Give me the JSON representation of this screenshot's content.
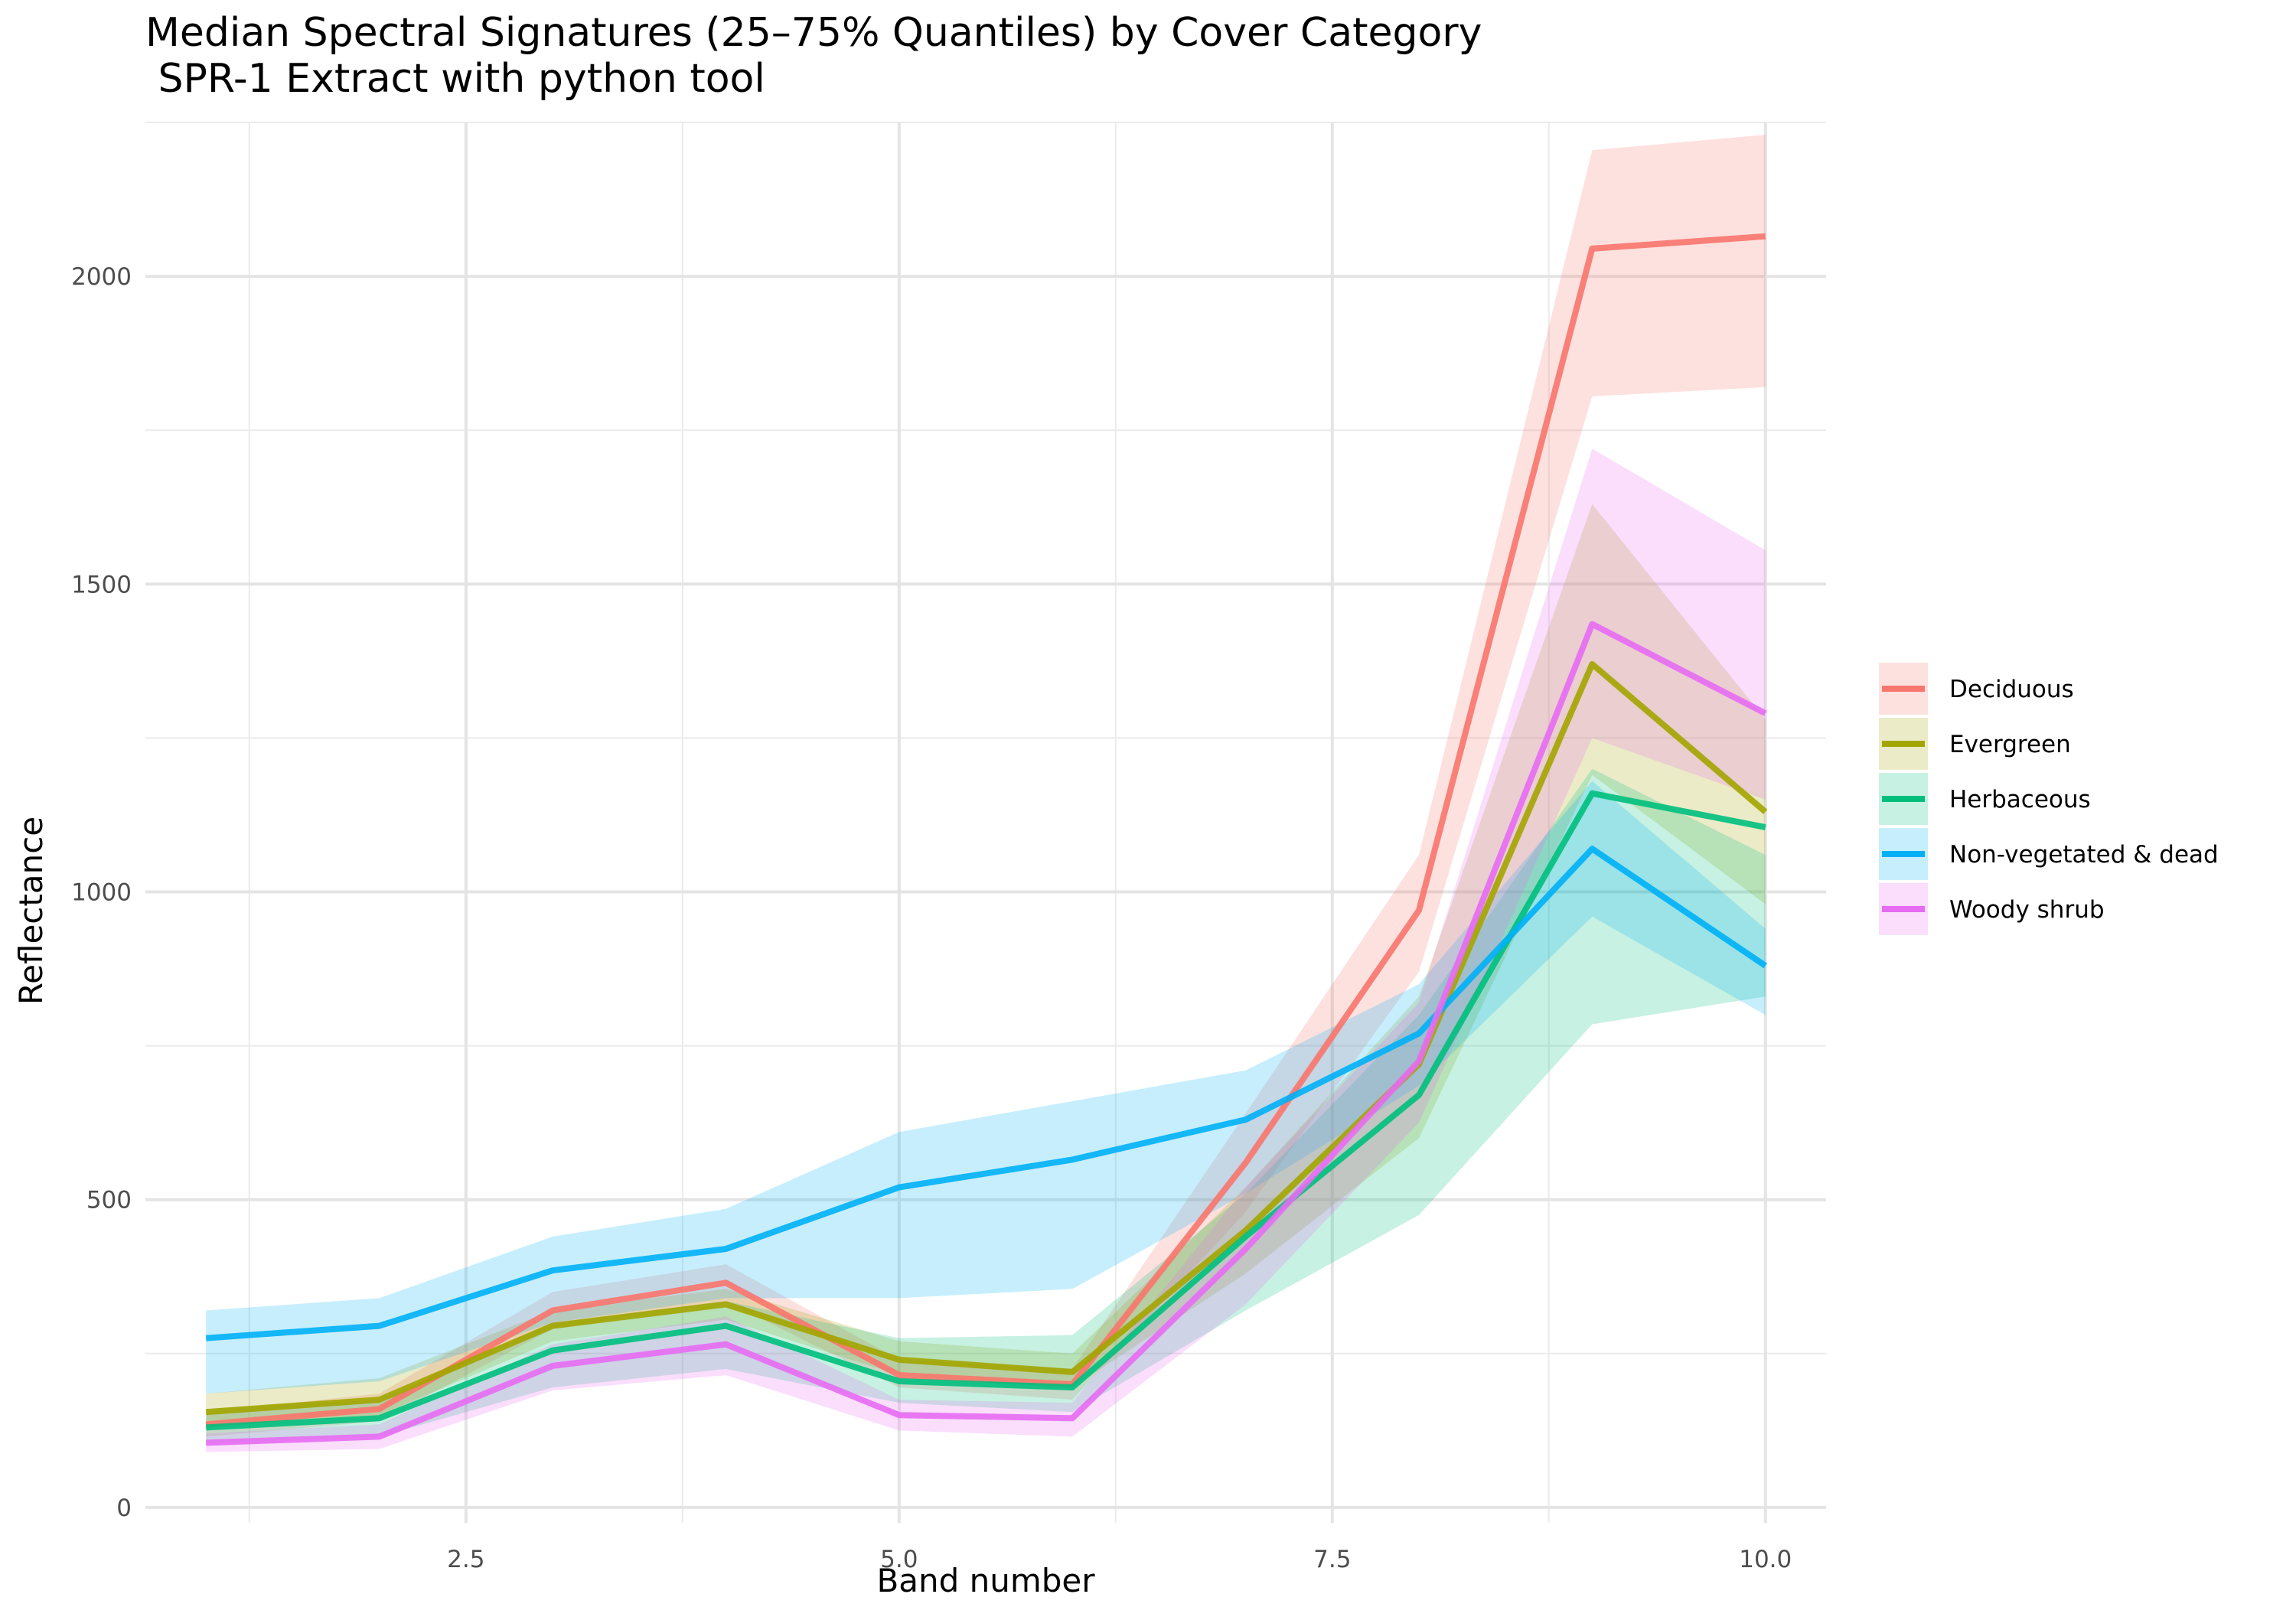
{
  "chart_data": {
    "type": "line",
    "title": "Median Spectral Signatures (25–75% Quantiles) by Cover Category",
    "subtitle": " SPR-1 Extract with python tool",
    "xlabel": "Band number",
    "ylabel": "Reflectance",
    "xlim": [
      0.65,
      10.35
    ],
    "ylim": [
      -25,
      2250
    ],
    "x_ticks": [
      2.5,
      5.0,
      7.5,
      10.0
    ],
    "x_tick_labels": [
      "2.5",
      "5.0",
      "7.5",
      "10.0"
    ],
    "y_ticks": [
      0,
      500,
      1000,
      1500,
      2000
    ],
    "y_tick_labels": [
      "0",
      "500",
      "1000",
      "1500",
      "2000"
    ],
    "grid": true,
    "legend_position": "right",
    "x": [
      1,
      2,
      3,
      4,
      5,
      6,
      7,
      8,
      9,
      10
    ],
    "series": [
      {
        "name": "Deciduous",
        "color": "#F8766D",
        "median": [
          135,
          160,
          320,
          365,
          215,
          200,
          560,
          970,
          2045,
          2065
        ],
        "q25": [
          115,
          140,
          290,
          335,
          195,
          175,
          480,
          870,
          1805,
          1820
        ],
        "q75": [
          155,
          185,
          350,
          395,
          240,
          225,
          640,
          1060,
          2205,
          2230
        ]
      },
      {
        "name": "Evergreen",
        "color": "#A3A500",
        "median": [
          155,
          175,
          295,
          330,
          240,
          220,
          450,
          720,
          1370,
          1130
        ],
        "q25": [
          130,
          150,
          270,
          305,
          215,
          195,
          380,
          600,
          1190,
          980
        ],
        "q75": [
          185,
          210,
          320,
          355,
          270,
          250,
          520,
          830,
          1630,
          1280
        ]
      },
      {
        "name": "Herbaceous",
        "color": "#00BF7D",
        "median": [
          130,
          145,
          255,
          295,
          205,
          195,
          440,
          670,
          1160,
          1105
        ],
        "q25": [
          105,
          115,
          195,
          225,
          170,
          155,
          320,
          475,
          785,
          830
        ],
        "q75": [
          160,
          175,
          300,
          335,
          275,
          280,
          510,
          800,
          1200,
          1060
        ]
      },
      {
        "name": "Non-vegetated & dead",
        "color": "#00B0F6",
        "median": [
          275,
          295,
          385,
          420,
          520,
          565,
          630,
          770,
          1070,
          880
        ],
        "q25": [
          185,
          205,
          300,
          340,
          340,
          355,
          510,
          685,
          960,
          800
        ],
        "q75": [
          320,
          340,
          440,
          485,
          610,
          660,
          710,
          850,
          1180,
          940
        ]
      },
      {
        "name": "Woody shrub",
        "color": "#E76BF3",
        "median": [
          105,
          115,
          230,
          265,
          150,
          145,
          420,
          725,
          1435,
          1290
        ],
        "q25": [
          90,
          95,
          190,
          215,
          125,
          115,
          330,
          625,
          1250,
          1150
        ],
        "q75": [
          120,
          135,
          265,
          310,
          175,
          170,
          520,
          820,
          1720,
          1555
        ]
      }
    ]
  }
}
